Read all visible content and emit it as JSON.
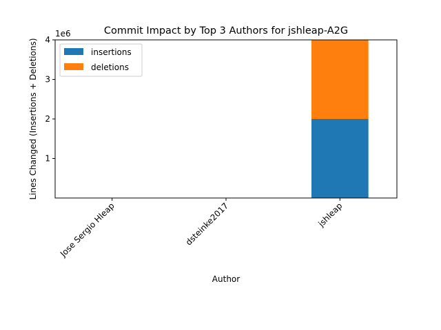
{
  "chart_data": {
    "type": "bar",
    "stacked": true,
    "title": "Commit Impact by Top 3 Authors for jshleap-A2G",
    "xlabel": "Author",
    "ylabel": "Lines Changed (Insertions + Deletions)",
    "offset_label": "1e6",
    "categories": [
      "Jose Sergio Hleap",
      "dsteinke2017",
      "jshleap"
    ],
    "series": [
      {
        "name": "insertions",
        "values": [
          0,
          0,
          2000000
        ],
        "color": "#1f77b4"
      },
      {
        "name": "deletions",
        "values": [
          0,
          0,
          2000000
        ],
        "color": "#ff7f0e"
      }
    ],
    "ylim": [
      0,
      4000000
    ],
    "yticks": [
      1000000,
      2000000,
      3000000,
      4000000
    ],
    "ytick_labels": [
      "1",
      "2",
      "3",
      "4"
    ],
    "grid": false,
    "legend": "top-left"
  }
}
